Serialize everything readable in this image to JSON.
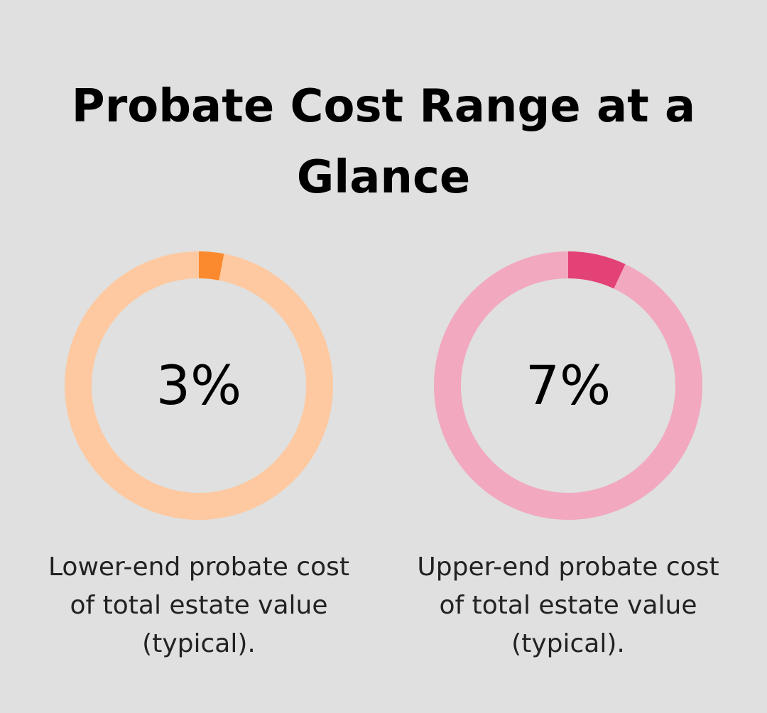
{
  "title": "Probate Cost Range at a Glance",
  "chart_data": [
    {
      "type": "pie",
      "variant": "donut",
      "value": 3,
      "max": 100,
      "center_label": "3%",
      "caption": "Lower-end probate cost of total estate value (typical).",
      "colors": {
        "fill": "#fb8a2e",
        "track": "#fec9a1"
      }
    },
    {
      "type": "pie",
      "variant": "donut",
      "value": 7,
      "max": 100,
      "center_label": "7%",
      "caption": "Upper-end probate cost of total estate value (typical).",
      "colors": {
        "fill": "#e34276",
        "track": "#f2a8bf"
      }
    }
  ],
  "colors": {
    "background": "#dfe0df"
  }
}
